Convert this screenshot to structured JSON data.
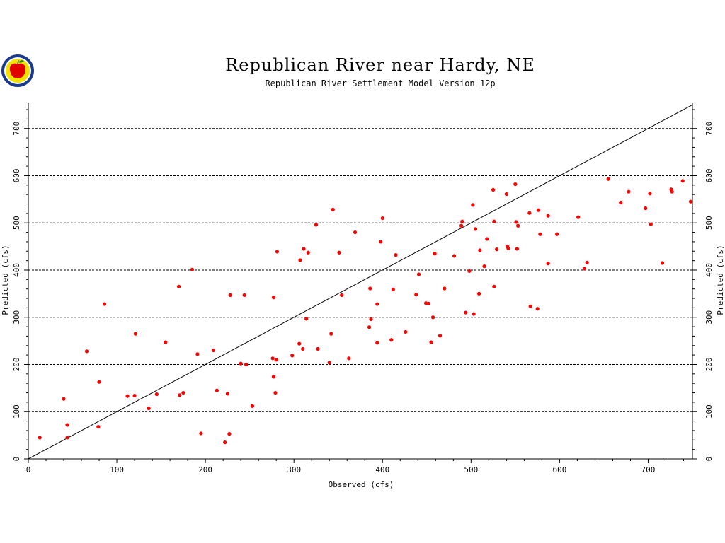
{
  "chart_data": {
    "type": "scatter",
    "title": "Republican River near Hardy, NE",
    "subtitle": "Republican River Settlement Model Version 12p",
    "xlabel": "Observed (cfs)",
    "ylabel": "Predicted (cfs)",
    "xlim": [
      0,
      750
    ],
    "ylim": [
      0,
      755
    ],
    "xticks": [
      0,
      100,
      200,
      300,
      400,
      500,
      600,
      700
    ],
    "yticks": [
      0,
      100,
      200,
      300,
      400,
      500,
      600,
      700
    ],
    "grid": "horizontal-dashed",
    "reference_line": [
      [
        0,
        0
      ],
      [
        750,
        750
      ]
    ],
    "colors": {
      "points": "#ff0000",
      "line": "#000000",
      "grid": "#000000"
    },
    "logo_icon": "apple-seal-icon",
    "points": [
      [
        13,
        45
      ],
      [
        40,
        127
      ],
      [
        44,
        72
      ],
      [
        44,
        45
      ],
      [
        66,
        228
      ],
      [
        79,
        68
      ],
      [
        80,
        163
      ],
      [
        86,
        328
      ],
      [
        112,
        133
      ],
      [
        120,
        134
      ],
      [
        121,
        265
      ],
      [
        136,
        107
      ],
      [
        145,
        137
      ],
      [
        155,
        247
      ],
      [
        170,
        365
      ],
      [
        171,
        135
      ],
      [
        175,
        140
      ],
      [
        185,
        401
      ],
      [
        191,
        222
      ],
      [
        195,
        54
      ],
      [
        209,
        230
      ],
      [
        213,
        145
      ],
      [
        222,
        35
      ],
      [
        225,
        138
      ],
      [
        227,
        53
      ],
      [
        228,
        347
      ],
      [
        240,
        202
      ],
      [
        244,
        347
      ],
      [
        246,
        200
      ],
      [
        253,
        112
      ],
      [
        276,
        213
      ],
      [
        277,
        342
      ],
      [
        277,
        174
      ],
      [
        279,
        140
      ],
      [
        280,
        210
      ],
      [
        281,
        439
      ],
      [
        298,
        219
      ],
      [
        306,
        244
      ],
      [
        307,
        421
      ],
      [
        310,
        233
      ],
      [
        311,
        445
      ],
      [
        314,
        297
      ],
      [
        316,
        437
      ],
      [
        325,
        496
      ],
      [
        327,
        233
      ],
      [
        340,
        204
      ],
      [
        342,
        265
      ],
      [
        344,
        528
      ],
      [
        351,
        437
      ],
      [
        354,
        347
      ],
      [
        362,
        213
      ],
      [
        369,
        480
      ],
      [
        385,
        279
      ],
      [
        386,
        361
      ],
      [
        387,
        296
      ],
      [
        394,
        246
      ],
      [
        394,
        328
      ],
      [
        398,
        460
      ],
      [
        400,
        510
      ],
      [
        410,
        252
      ],
      [
        412,
        359
      ],
      [
        415,
        432
      ],
      [
        426,
        269
      ],
      [
        438,
        348
      ],
      [
        441,
        391
      ],
      [
        449,
        330
      ],
      [
        452,
        329
      ],
      [
        455,
        247
      ],
      [
        457,
        300
      ],
      [
        459,
        435
      ],
      [
        465,
        261
      ],
      [
        470,
        361
      ],
      [
        481,
        430
      ],
      [
        489,
        494
      ],
      [
        490,
        503
      ],
      [
        494,
        310
      ],
      [
        498,
        398
      ],
      [
        502,
        538
      ],
      [
        503,
        307
      ],
      [
        505,
        487
      ],
      [
        509,
        350
      ],
      [
        510,
        442
      ],
      [
        515,
        408
      ],
      [
        518,
        466
      ],
      [
        525,
        570
      ],
      [
        526,
        503
      ],
      [
        526,
        365
      ],
      [
        529,
        444
      ],
      [
        540,
        561
      ],
      [
        541,
        450
      ],
      [
        542,
        446
      ],
      [
        550,
        582
      ],
      [
        551,
        502
      ],
      [
        552,
        445
      ],
      [
        553,
        494
      ],
      [
        566,
        521
      ],
      [
        567,
        323
      ],
      [
        575,
        318
      ],
      [
        576,
        527
      ],
      [
        578,
        476
      ],
      [
        587,
        515
      ],
      [
        587,
        414
      ],
      [
        597,
        476
      ],
      [
        621,
        512
      ],
      [
        628,
        403
      ],
      [
        631,
        416
      ],
      [
        655,
        593
      ],
      [
        669,
        543
      ],
      [
        678,
        566
      ],
      [
        697,
        531
      ],
      [
        702,
        562
      ],
      [
        703,
        497
      ],
      [
        716,
        415
      ],
      [
        726,
        571
      ],
      [
        727,
        566
      ],
      [
        739,
        589
      ],
      [
        748,
        545
      ]
    ]
  }
}
